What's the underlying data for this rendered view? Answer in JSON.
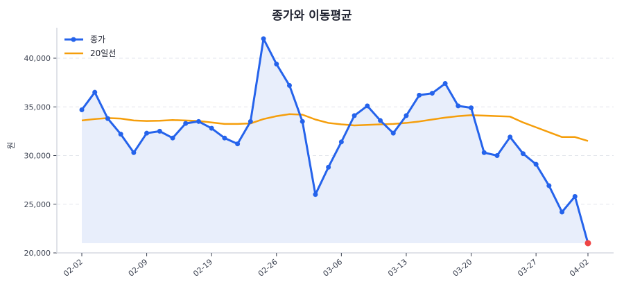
{
  "chart_data": {
    "type": "line",
    "title": "종가와 이동평균",
    "xlabel": "",
    "ylabel": "원",
    "ylim": [
      20000,
      43000
    ],
    "yticks": [
      20000,
      25000,
      30000,
      35000,
      40000
    ],
    "ytick_labels": [
      "20,000",
      "25,000",
      "30,000",
      "35,000",
      "40,000"
    ],
    "xtick_labels": [
      "02-02",
      "02-09",
      "02-19",
      "02-26",
      "03-06",
      "03-13",
      "03-20",
      "03-27",
      "04-02"
    ],
    "xtick_indices": [
      0,
      5,
      10,
      15,
      20,
      25,
      30,
      35,
      39
    ],
    "grid": "y-dashed",
    "legend_position": "upper-left",
    "x": [
      0,
      1,
      2,
      3,
      4,
      5,
      6,
      7,
      8,
      9,
      10,
      11,
      12,
      13,
      14,
      15,
      16,
      17,
      18,
      19,
      20,
      21,
      22,
      23,
      24,
      25,
      26,
      27,
      28,
      29,
      30,
      31,
      32,
      33,
      34,
      35,
      36,
      37,
      38,
      39
    ],
    "series": [
      {
        "name": "종가",
        "color": "#2563eb",
        "marker": "circle",
        "fill": "#e8eefb",
        "values": [
          34700,
          36500,
          33800,
          32200,
          30300,
          32300,
          32500,
          31800,
          33300,
          33500,
          32800,
          31800,
          31200,
          33500,
          42000,
          39400,
          37200,
          33500,
          26000,
          28800,
          31400,
          34100,
          35100,
          33600,
          32300,
          34100,
          36200,
          36400,
          37400,
          35100,
          34900,
          30300,
          30000,
          31900,
          30200,
          29100,
          26900,
          24200,
          25800,
          21000
        ],
        "last_point_color": "#ef4444"
      },
      {
        "name": "20일선",
        "color": "#f59e0b",
        "values": [
          33600,
          33750,
          33850,
          33800,
          33600,
          33550,
          33580,
          33650,
          33600,
          33550,
          33400,
          33250,
          33250,
          33300,
          33750,
          34050,
          34250,
          34200,
          33700,
          33350,
          33200,
          33100,
          33150,
          33200,
          33250,
          33350,
          33500,
          33700,
          33900,
          34050,
          34150,
          34100,
          34050,
          34000,
          33400,
          32900,
          32400,
          31900,
          31900,
          31500
        ]
      }
    ]
  }
}
